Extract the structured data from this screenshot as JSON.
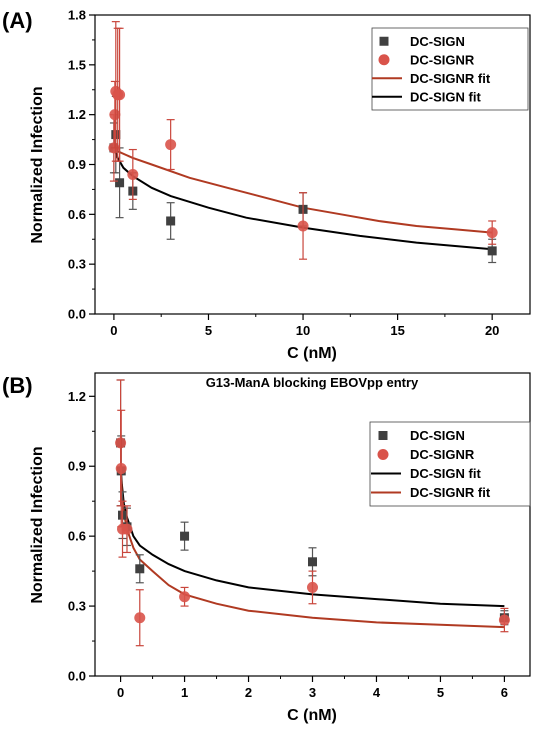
{
  "chart_data": [
    {
      "panel_label": "(A)",
      "type": "scatter",
      "title": "",
      "xlabel": "C (nM)",
      "ylabel": "Normalized Infection",
      "xlim": [
        -1,
        22
      ],
      "ylim": [
        0,
        1.8
      ],
      "xticks": [
        0,
        5,
        10,
        15,
        20
      ],
      "yticks": [
        0.0,
        0.3,
        0.6,
        0.9,
        1.2,
        1.5,
        1.8
      ],
      "legend": "top-right",
      "legend_order": [
        "DC-SIGN",
        "DC-SIGNR",
        "DC-SIGNR fit",
        "DC-SIGN fit"
      ],
      "series": [
        {
          "name": "DC-SIGN",
          "kind": "points",
          "marker": "square",
          "color": "#404040",
          "x": [
            0,
            0.1,
            0.3,
            1,
            3,
            10,
            20
          ],
          "y": [
            1.0,
            1.08,
            0.79,
            0.74,
            0.56,
            0.63,
            0.38
          ],
          "err": [
            0.15,
            0.23,
            0.21,
            0.11,
            0.11,
            0.1,
            0.07
          ]
        },
        {
          "name": "DC-SIGNR",
          "kind": "points",
          "marker": "circle",
          "color": "#d9534a",
          "x": [
            0,
            0.05,
            0.1,
            0.2,
            0.3,
            1,
            3,
            10,
            20
          ],
          "y": [
            1.0,
            1.2,
            1.34,
            1.32,
            1.32,
            0.84,
            1.02,
            0.53,
            0.49
          ],
          "err": [
            0.2,
            0.2,
            0.42,
            0.4,
            0.4,
            0.15,
            0.15,
            0.2,
            0.07
          ]
        },
        {
          "name": "DC-SIGNR fit",
          "kind": "line",
          "color": "#b03a22",
          "x": [
            0,
            1,
            2,
            4,
            6,
            8,
            10,
            12,
            14,
            16,
            18,
            20
          ],
          "y": [
            0.99,
            0.94,
            0.9,
            0.82,
            0.76,
            0.7,
            0.64,
            0.6,
            0.56,
            0.53,
            0.51,
            0.49
          ]
        },
        {
          "name": "DC-SIGN fit",
          "kind": "line",
          "color": "#000000",
          "x": [
            0,
            0.2,
            0.5,
            1,
            2,
            3,
            5,
            7,
            10,
            13,
            16,
            20
          ],
          "y": [
            1.0,
            0.94,
            0.88,
            0.83,
            0.76,
            0.71,
            0.64,
            0.58,
            0.52,
            0.47,
            0.43,
            0.39
          ]
        }
      ]
    },
    {
      "panel_label": "(B)",
      "type": "scatter",
      "title": "G13-ManA blocking EBOVpp entry",
      "xlabel": "C (nM)",
      "ylabel": "Normalized Infection",
      "xlim": [
        -0.4,
        6.4
      ],
      "ylim": [
        0,
        1.3
      ],
      "xticks": [
        0,
        1,
        2,
        3,
        4,
        5,
        6
      ],
      "yticks": [
        0.0,
        0.3,
        0.6,
        0.9,
        1.2
      ],
      "legend": "top-right",
      "legend_order": [
        "DC-SIGN",
        "DC-SIGNR",
        "DC-SIGN fit",
        "DC-SIGNR fit"
      ],
      "series": [
        {
          "name": "DC-SIGN",
          "kind": "points",
          "marker": "square",
          "color": "#404040",
          "x": [
            0,
            0.01,
            0.03,
            0.1,
            0.3,
            1,
            3,
            6
          ],
          "y": [
            1.0,
            0.88,
            0.69,
            0.64,
            0.46,
            0.6,
            0.49,
            0.25
          ],
          "err": [
            0.27,
            0.15,
            0.1,
            0.08,
            0.06,
            0.06,
            0.06,
            0.03
          ]
        },
        {
          "name": "DC-SIGNR",
          "kind": "points",
          "marker": "circle",
          "color": "#d9534a",
          "x": [
            0,
            0.01,
            0.03,
            0.1,
            0.3,
            1,
            3,
            6
          ],
          "y": [
            1.0,
            0.89,
            0.63,
            0.63,
            0.25,
            0.34,
            0.38,
            0.24
          ],
          "err": [
            0.27,
            0.25,
            0.12,
            0.1,
            0.12,
            0.04,
            0.07,
            0.05
          ]
        },
        {
          "name": "DC-SIGN fit",
          "kind": "line",
          "color": "#000000",
          "x": [
            0,
            0.02,
            0.05,
            0.1,
            0.2,
            0.3,
            0.5,
            0.75,
            1,
            1.5,
            2,
            3,
            4,
            5,
            6
          ],
          "y": [
            0.9,
            0.82,
            0.74,
            0.68,
            0.6,
            0.56,
            0.52,
            0.48,
            0.45,
            0.41,
            0.38,
            0.35,
            0.33,
            0.31,
            0.3
          ]
        },
        {
          "name": "DC-SIGNR fit",
          "kind": "line",
          "color": "#b03a22",
          "x": [
            0,
            0.02,
            0.05,
            0.1,
            0.2,
            0.3,
            0.5,
            0.75,
            1,
            1.5,
            2,
            3,
            4,
            5,
            6
          ],
          "y": [
            0.9,
            0.78,
            0.7,
            0.63,
            0.55,
            0.5,
            0.45,
            0.39,
            0.35,
            0.31,
            0.28,
            0.25,
            0.23,
            0.22,
            0.21
          ]
        }
      ]
    }
  ]
}
